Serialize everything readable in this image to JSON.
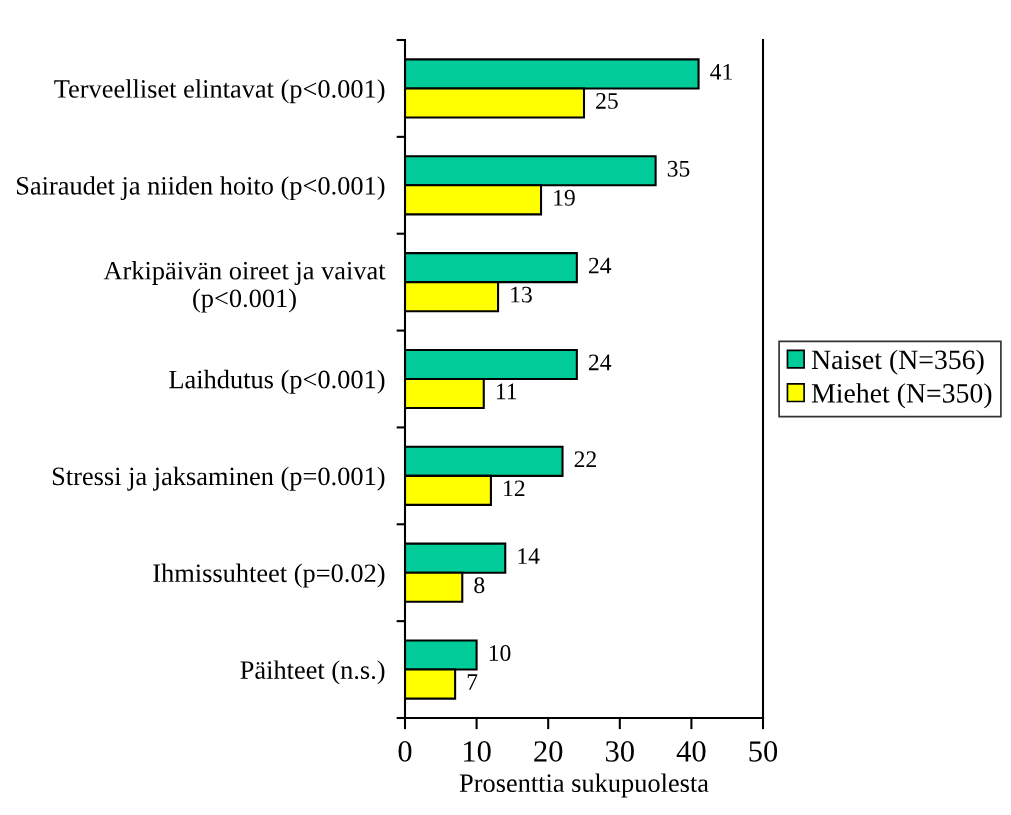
{
  "chart_data": {
    "type": "bar",
    "orientation": "horizontal",
    "xlabel": "Prosenttia sukupuolesta",
    "categories": [
      "Terveelliset elintavat (p<0.001)",
      "Sairaudet ja niiden hoito (p<0.001)",
      "Arkipäivän oireet ja vaivat\n(p<0.001)",
      "Laihdutus (p<0.001)",
      "Stressi ja jaksaminen (p=0.001)",
      "Ihmissuhteet (p=0.02)",
      "Päihteet (n.s.)"
    ],
    "series": [
      {
        "name": "Naiset (N=356)",
        "color": "#00cc99",
        "values": [
          41,
          35,
          24,
          24,
          22,
          14,
          10
        ]
      },
      {
        "name": "Miehet (N=350)",
        "color": "#ffff00",
        "values": [
          25,
          19,
          13,
          11,
          12,
          8,
          7
        ]
      }
    ],
    "xlim": [
      0,
      50
    ],
    "xticks": [
      0,
      10,
      20,
      30,
      40,
      50
    ],
    "data_labels": true,
    "legend": "right",
    "grid": false
  }
}
